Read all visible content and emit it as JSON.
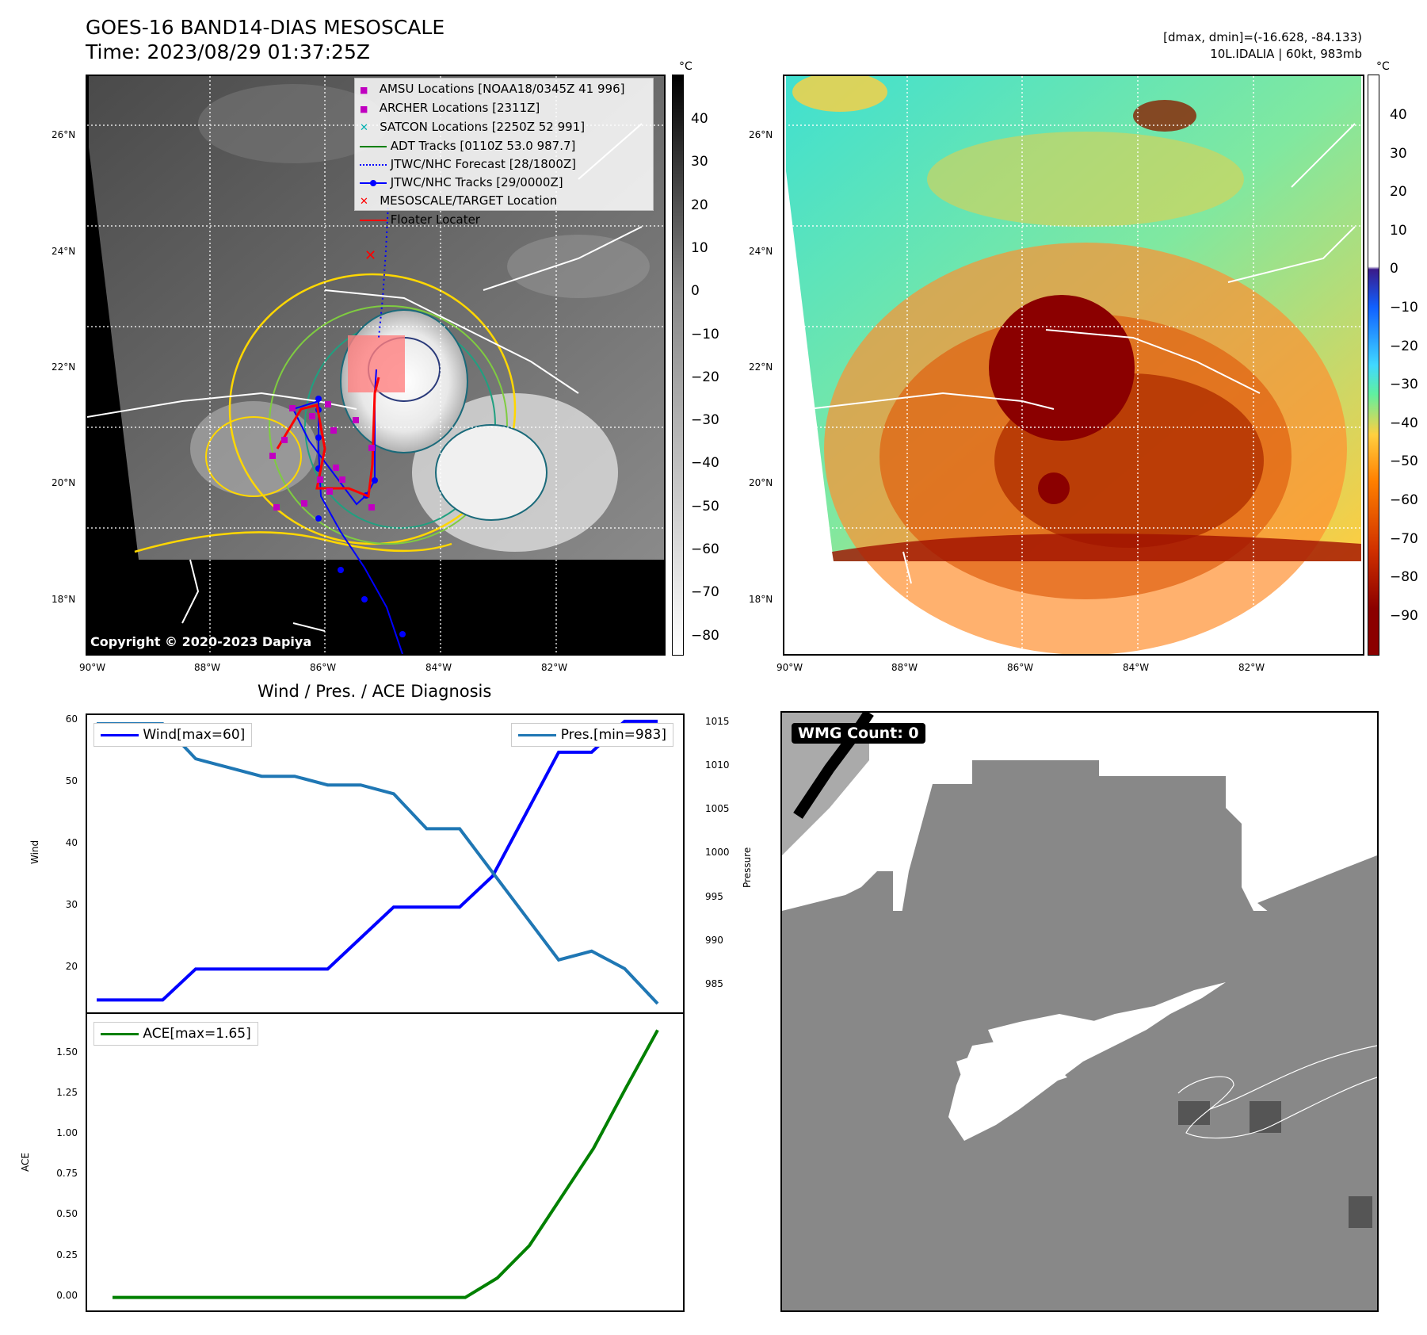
{
  "header": {
    "title": "GOES-16 BAND14-DIAS MESOSCALE",
    "time": "Time: 2023/08/29 01:37:25Z",
    "dmax_dmin": "[dmax, dmin]=(-16.628, -84.133)",
    "storm": "10L.IDALIA | 60kt, 983mb"
  },
  "map_axes": {
    "lat_labels": [
      "26°N",
      "24°N",
      "22°N",
      "20°N",
      "18°N"
    ],
    "lon_labels": [
      "90°W",
      "88°W",
      "86°W",
      "84°W",
      "82°W"
    ]
  },
  "left_colorbar": {
    "unit": "°C",
    "ticks": [
      "40",
      "30",
      "20",
      "10",
      "0",
      "−10",
      "−20",
      "−30",
      "−40",
      "−50",
      "−60",
      "−70",
      "−80"
    ]
  },
  "right_colorbar": {
    "unit": "°C",
    "ticks": [
      "40",
      "30",
      "20",
      "10",
      "0",
      "−10",
      "−20",
      "−30",
      "−40",
      "−50",
      "−60",
      "−70",
      "−80",
      "−90"
    ]
  },
  "legend": [
    {
      "label": "AMSU Locations [NOAA18/0345Z 41 996]",
      "marker": "square",
      "color": "#c000c0"
    },
    {
      "label": "ARCHER Locations [2311Z]",
      "marker": "square",
      "color": "#c000c0"
    },
    {
      "label": "SATCON Locations [2250Z 52 991]",
      "marker": "x",
      "color": "#00b0b0"
    },
    {
      "label": "ADT Tracks [0110Z 53.0 987.7]",
      "marker": "line",
      "color": "#008000"
    },
    {
      "label": "JTWC/NHC Forecast [28/1800Z]",
      "marker": "dotted",
      "color": "#0000ff"
    },
    {
      "label": "JTWC/NHC Tracks [29/0000Z]",
      "marker": "line-dot",
      "color": "#0000ff"
    },
    {
      "label": "MESOSCALE/TARGET Location",
      "marker": "x",
      "color": "#ff0000"
    },
    {
      "label": "Floater Locater",
      "marker": "line",
      "color": "#ff0000"
    }
  ],
  "copyright": "Copyright © 2020-2023 Dapiya",
  "diagnosis_title": "Wind / Pres. / ACE Diagnosis",
  "wmg_label": "WMG Count: 0",
  "chart_data": [
    {
      "type": "line",
      "title": "Wind / Pres. / ACE Diagnosis",
      "ylabel": "Wind",
      "y2label": "Pressure",
      "ylim": [
        13,
        61
      ],
      "y2lim": [
        982,
        1016
      ],
      "yticks": [
        "60",
        "50",
        "40",
        "30",
        "20"
      ],
      "y2ticks": [
        "1015",
        "1010",
        "1005",
        "1000",
        "995",
        "990",
        "985"
      ],
      "series": [
        {
          "name": "Wind[max=60]",
          "color": "#0000ff",
          "axis": "left",
          "values": [
            15,
            15,
            15,
            20,
            20,
            20,
            20,
            20,
            25,
            30,
            30,
            30,
            35,
            45,
            55,
            55,
            60,
            60
          ]
        },
        {
          "name": "Pres.[min=983]",
          "color": "#1f77b4",
          "axis": "right",
          "values": [
            1015,
            1015,
            1015,
            1011,
            1010,
            1009,
            1009,
            1008,
            1008,
            1007,
            1003,
            1003,
            998,
            993,
            988,
            989,
            987,
            983
          ]
        }
      ]
    },
    {
      "type": "line",
      "ylabel": "ACE",
      "ylim": [
        -0.08,
        1.75
      ],
      "yticks": [
        "1.50",
        "1.25",
        "1.00",
        "0.75",
        "0.50",
        "0.25",
        "0.00"
      ],
      "series": [
        {
          "name": "ACE[max=1.65]",
          "color": "#008000",
          "values": [
            0,
            0,
            0,
            0,
            0,
            0,
            0,
            0,
            0,
            0,
            0,
            0,
            0.12,
            0.32,
            0.62,
            0.92,
            1.29,
            1.65
          ]
        }
      ]
    }
  ]
}
